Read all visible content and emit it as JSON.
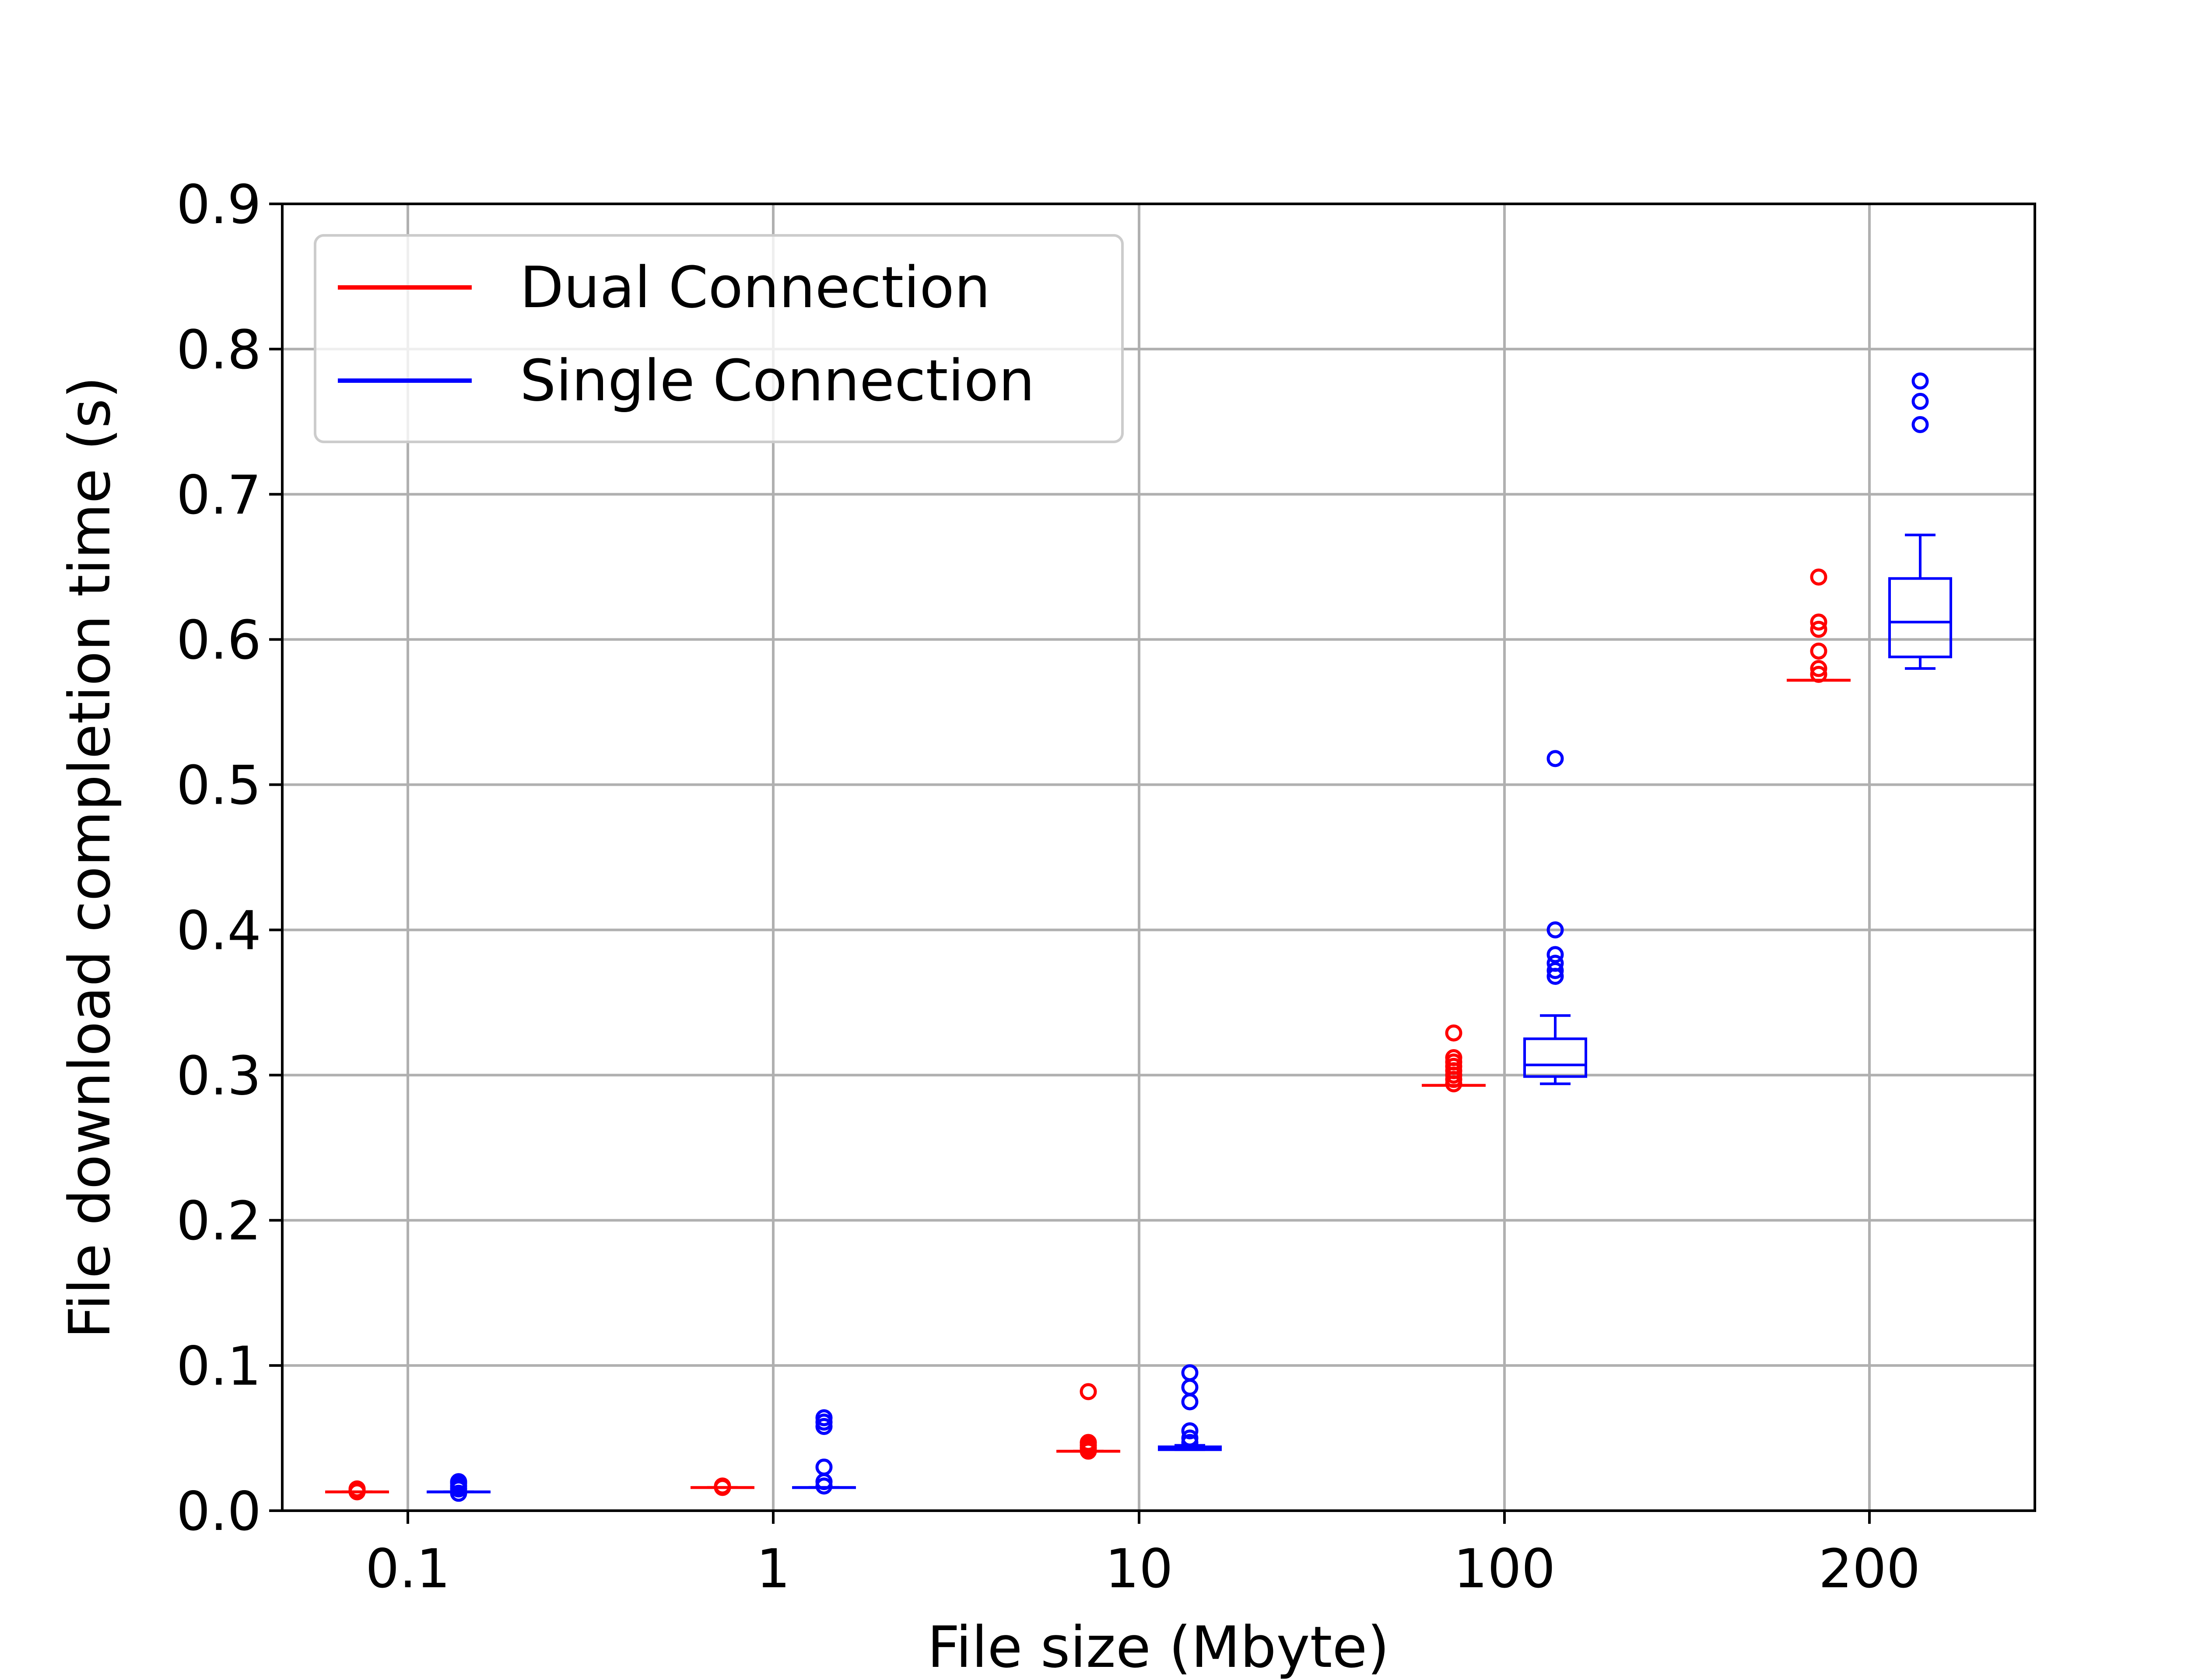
{
  "chart_data": {
    "type": "box",
    "xlabel": "File size (Mbyte)",
    "ylabel": "File download completion time (s)",
    "categories": [
      "0.1",
      "1",
      "10",
      "100",
      "200"
    ],
    "ylim": [
      0,
      0.9
    ],
    "yticks": [
      "0.0",
      "0.1",
      "0.2",
      "0.3",
      "0.4",
      "0.5",
      "0.6",
      "0.7",
      "0.8",
      "0.9"
    ],
    "grid": true,
    "legend_position": "top-left",
    "series": [
      {
        "name": "Dual Connection",
        "color": "#ff0000",
        "boxes": [
          {
            "category": "0.1",
            "whisker_low": 0.013,
            "q1": 0.013,
            "median": 0.013,
            "q3": 0.013,
            "whisker_high": 0.013,
            "outliers": [
              0.013,
              0.014,
              0.015
            ]
          },
          {
            "category": "1",
            "whisker_low": 0.016,
            "q1": 0.016,
            "median": 0.016,
            "q3": 0.016,
            "whisker_high": 0.016,
            "outliers": [
              0.016,
              0.017
            ]
          },
          {
            "category": "10",
            "whisker_low": 0.041,
            "q1": 0.041,
            "median": 0.041,
            "q3": 0.041,
            "whisker_high": 0.041,
            "outliers": [
              0.041,
              0.043,
              0.045,
              0.047,
              0.082
            ]
          },
          {
            "category": "100",
            "whisker_low": 0.293,
            "q1": 0.293,
            "median": 0.293,
            "q3": 0.293,
            "whisker_high": 0.293,
            "outliers": [
              0.294,
              0.297,
              0.3,
              0.303,
              0.306,
              0.309,
              0.312,
              0.329
            ]
          },
          {
            "category": "200",
            "whisker_low": 0.572,
            "q1": 0.572,
            "median": 0.572,
            "q3": 0.572,
            "whisker_high": 0.572,
            "outliers": [
              0.576,
              0.58,
              0.592,
              0.607,
              0.612,
              0.643
            ]
          }
        ]
      },
      {
        "name": "Single Connection",
        "color": "#0000ff",
        "boxes": [
          {
            "category": "0.1",
            "whisker_low": 0.013,
            "q1": 0.013,
            "median": 0.013,
            "q3": 0.013,
            "whisker_high": 0.013,
            "outliers": [
              0.012,
              0.015,
              0.017,
              0.019,
              0.02
            ]
          },
          {
            "category": "1",
            "whisker_low": 0.016,
            "q1": 0.016,
            "median": 0.016,
            "q3": 0.016,
            "whisker_high": 0.016,
            "outliers": [
              0.017,
              0.02,
              0.03,
              0.058,
              0.061,
              0.064
            ]
          },
          {
            "category": "10",
            "whisker_low": 0.042,
            "q1": 0.042,
            "median": 0.043,
            "q3": 0.044,
            "whisker_high": 0.045,
            "outliers": [
              0.047,
              0.05,
              0.055,
              0.075,
              0.085,
              0.095
            ]
          },
          {
            "category": "100",
            "whisker_low": 0.294,
            "q1": 0.299,
            "median": 0.307,
            "q3": 0.325,
            "whisker_high": 0.341,
            "outliers": [
              0.368,
              0.372,
              0.377,
              0.383,
              0.4,
              0.518
            ]
          },
          {
            "category": "200",
            "whisker_low": 0.58,
            "q1": 0.588,
            "median": 0.612,
            "q3": 0.642,
            "whisker_high": 0.672,
            "outliers": [
              0.748,
              0.764,
              0.778
            ]
          }
        ]
      }
    ]
  }
}
